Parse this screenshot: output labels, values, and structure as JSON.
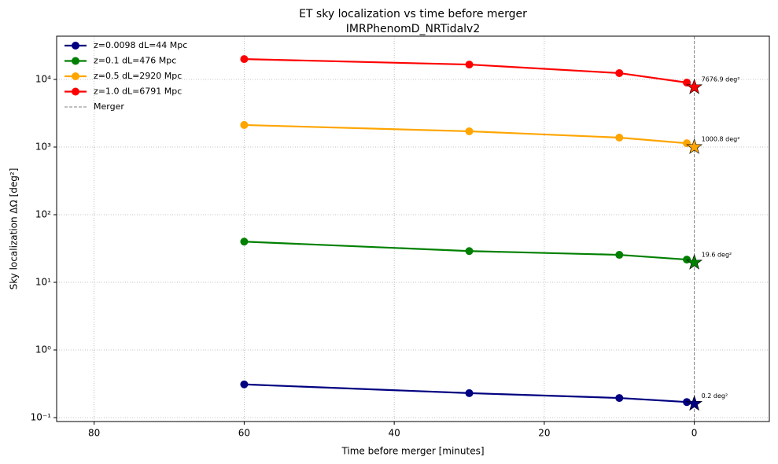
{
  "chart_data": {
    "type": "line",
    "title": "ET sky localization vs time before merger",
    "subtitle": "IMRPhenomD_NRTidalv2",
    "x_label": "Time before merger [minutes]",
    "y_label": "Sky localization ΔΩ [deg²]",
    "xlim": [
      85,
      -10
    ],
    "xticks": [
      80,
      60,
      40,
      20,
      0
    ],
    "ylim": [
      0.0875,
      43600
    ],
    "log_y": true,
    "yticks": [
      {
        "value": 0.1,
        "label": "10⁻¹"
      },
      {
        "value": 1,
        "label": "10⁰"
      },
      {
        "value": 10,
        "label": "10¹"
      },
      {
        "value": 100,
        "label": "10²"
      },
      {
        "value": 1000,
        "label": "10³"
      },
      {
        "value": 10000,
        "label": "10⁴"
      }
    ],
    "grid": true,
    "legend": "upper left",
    "series": [
      {
        "name": "z=0.0098  dL=44 Mpc",
        "color": "#000080",
        "x": [
          60,
          30,
          10,
          1
        ],
        "values": [
          0.31,
          0.23,
          0.195,
          0.17
        ],
        "final": {
          "x": 0,
          "value": 0.16,
          "label": "0.2 deg²"
        }
      },
      {
        "name": "z=0.1  dL=476 Mpc",
        "color": "#008000",
        "x": [
          60,
          30,
          10,
          1
        ],
        "values": [
          40,
          29,
          25.5,
          21.7
        ],
        "final": {
          "x": 0,
          "value": 19.6,
          "label": "19.6 deg²"
        }
      },
      {
        "name": "z=0.5  dL=2920 Mpc",
        "color": "#ffa500",
        "x": [
          60,
          30,
          10,
          1
        ],
        "values": [
          2120,
          1710,
          1380,
          1140
        ],
        "final": {
          "x": 0,
          "value": 1000.8,
          "label": "1000.8 deg²"
        }
      },
      {
        "name": "z=1.0  dL=6791 Mpc",
        "color": "#ff0000",
        "x": [
          60,
          30,
          10,
          1
        ],
        "values": [
          20000,
          16600,
          12400,
          8980
        ],
        "final": {
          "x": 0,
          "value": 7676.9,
          "label": "7676.9 deg²"
        }
      }
    ],
    "vline": {
      "x": 0,
      "name": "Merger",
      "color": "#808080"
    }
  }
}
